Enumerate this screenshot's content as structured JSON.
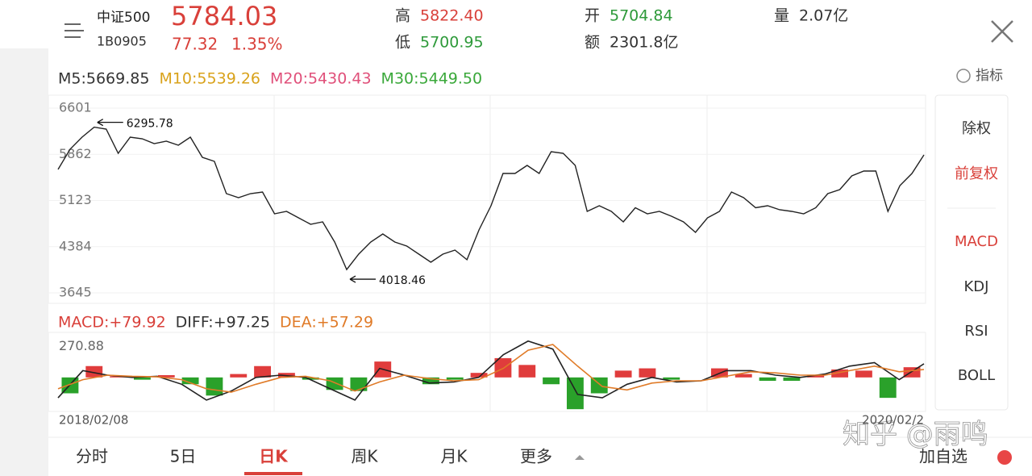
{
  "header": {
    "name": "中证500",
    "code": "1B0905",
    "price": "5784.03",
    "change": "77.32",
    "change_pct": "1.35%",
    "stats": [
      {
        "label": "高",
        "value": "5822.40",
        "color": "#d9403a"
      },
      {
        "label": "低",
        "value": "5700.95",
        "color": "#2e9a3a"
      },
      {
        "label": "开",
        "value": "5704.84",
        "color": "#2e9a3a"
      },
      {
        "label": "额",
        "value": "2301.8亿",
        "color": "#333333"
      },
      {
        "label": "量",
        "value": "2.07亿",
        "color": "#333333"
      }
    ]
  },
  "indicators_label": "指标",
  "side_menu": [
    "除权",
    "前复权",
    "MACD",
    "KDJ",
    "RSI",
    "BOLL"
  ],
  "tabs": [
    "分时",
    "5日",
    "日K",
    "周K",
    "月K",
    "更多",
    "加自选"
  ],
  "watermark": "知乎 @雨鸣",
  "chart_data": [
    {
      "type": "line",
      "legend": [
        {
          "text": "M5:5669.85",
          "color": "#333333"
        },
        {
          "text": "M10:5539.26",
          "color": "#d9a21b"
        },
        {
          "text": "M20:5430.43",
          "color": "#e0507a"
        },
        {
          "text": "M30:5449.50",
          "color": "#3aa83a"
        }
      ],
      "series": [
        {
          "color": "#222222",
          "values": [
            5620,
            5943,
            6136,
            6295.78,
            6265,
            5878,
            6136,
            6110,
            6033,
            6072,
            6007,
            6136,
            5814,
            5749,
            5233,
            5168,
            5233,
            5259,
            4910,
            4949,
            4846,
            4742,
            4781,
            4458,
            4018.46,
            4265,
            4458,
            4587,
            4458,
            4394,
            4265,
            4136,
            4265,
            4329,
            4175,
            4652,
            5039,
            5555,
            5555,
            5684,
            5555,
            5904,
            5878,
            5684,
            4949,
            5039,
            4949,
            4781,
            5007,
            4910,
            4949,
            4871,
            4781,
            4613,
            4846,
            4949,
            5259,
            5168,
            5007,
            5039,
            4975,
            4949,
            4910,
            5007,
            5233,
            5297,
            5517,
            5594,
            5594,
            4949,
            5362,
            5555,
            5852
          ]
        }
      ],
      "ylim": [
        3645,
        6601
      ],
      "yticks": [
        3645,
        4384,
        5123,
        5862,
        6601
      ],
      "annotations": [
        {
          "text": "6295.78",
          "value": 6295.78
        },
        {
          "text": "4018.46",
          "value": 4018.46
        }
      ]
    },
    {
      "type": "macd",
      "legend": [
        {
          "text": "MACD:+79.92",
          "color": "#d9403a"
        },
        {
          "text": "DIFF:+97.25",
          "color": "#333333"
        },
        {
          "text": "DEA:+57.29",
          "color": "#e07b28"
        }
      ],
      "histogram": {
        "up_color": "#e03c3c",
        "down_color": "#2aa12a",
        "values": [
          -140,
          100,
          10,
          -20,
          20,
          -60,
          -160,
          30,
          100,
          40,
          -20,
          -110,
          -120,
          140,
          0,
          -60,
          -20,
          40,
          170,
          110,
          -60,
          -280,
          -140,
          60,
          80,
          -20,
          0,
          80,
          30,
          -30,
          -30,
          20,
          70,
          60,
          -180,
          90
        ]
      },
      "series": [
        {
          "color": "#222222",
          "values": [
            -180,
            60,
            20,
            0,
            10,
            -60,
            -200,
            -120,
            0,
            20,
            0,
            -100,
            -200,
            80,
            20,
            -50,
            -40,
            0,
            200,
            320,
            250,
            -150,
            -180,
            -60,
            0,
            -40,
            -30,
            60,
            60,
            20,
            0,
            30,
            100,
            130,
            -20,
            120
          ]
        },
        {
          "color": "#e07b28",
          "values": [
            -100,
            -20,
            20,
            10,
            5,
            -20,
            -100,
            -130,
            -60,
            0,
            10,
            -30,
            -120,
            -40,
            20,
            -10,
            -30,
            -20,
            80,
            240,
            290,
            100,
            -80,
            -110,
            -50,
            -30,
            -30,
            10,
            50,
            40,
            20,
            20,
            60,
            100,
            50,
            70
          ]
        }
      ],
      "ylim": [
        -300,
        340
      ],
      "yticks": [
        270.88
      ],
      "x_labels": [
        "2018/02/08",
        "2020/02/2"
      ]
    }
  ]
}
